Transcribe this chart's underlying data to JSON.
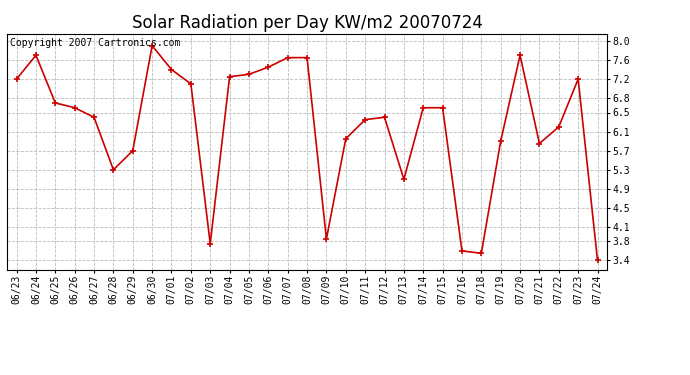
{
  "title": "Solar Radiation per Day KW/m2 20070724",
  "copyright": "Copyright 2007 Cartronics.com",
  "labels": [
    "06/23",
    "06/24",
    "06/25",
    "06/26",
    "06/27",
    "06/28",
    "06/29",
    "06/30",
    "07/01",
    "07/02",
    "07/03",
    "07/04",
    "07/05",
    "07/06",
    "07/07",
    "07/08",
    "07/09",
    "07/10",
    "07/11",
    "07/12",
    "07/13",
    "07/14",
    "07/15",
    "07/16",
    "07/18",
    "07/19",
    "07/20",
    "07/21",
    "07/22",
    "07/23",
    "07/24"
  ],
  "values": [
    7.2,
    7.7,
    6.7,
    6.6,
    6.4,
    5.3,
    5.7,
    7.9,
    7.4,
    7.1,
    3.75,
    7.25,
    7.3,
    7.45,
    7.65,
    7.65,
    3.85,
    5.95,
    6.35,
    6.4,
    5.1,
    6.6,
    6.6,
    3.6,
    3.55,
    5.9,
    7.7,
    5.85,
    6.2,
    7.2,
    3.4
  ],
  "line_color": "#cc0000",
  "marker": "+",
  "marker_size": 5,
  "marker_color": "#cc0000",
  "bg_color": "#ffffff",
  "plot_bg_color": "#ffffff",
  "grid_color": "#bbbbbb",
  "ylim": [
    3.2,
    8.15
  ],
  "yticks": [
    3.4,
    3.8,
    4.1,
    4.5,
    4.9,
    5.3,
    5.7,
    6.1,
    6.5,
    6.8,
    7.2,
    7.6,
    8.0
  ],
  "title_fontsize": 12,
  "copyright_fontsize": 7,
  "tick_fontsize": 7
}
